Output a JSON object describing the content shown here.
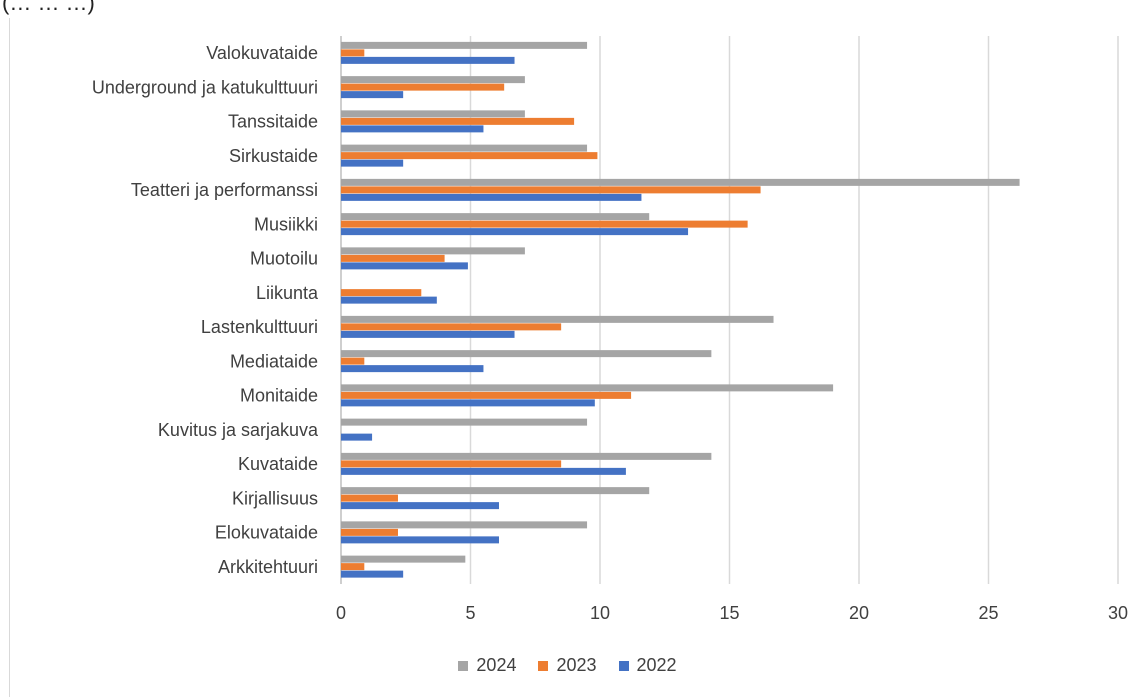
{
  "header_fragment": "(…                     …     …)",
  "chart_data": {
    "type": "bar",
    "orientation": "horizontal",
    "categories": [
      "Valokuvataide",
      "Underground ja katukulttuuri",
      "Tanssitaide",
      "Sirkustaide",
      "Teatteri ja performanssi",
      "Musiikki",
      "Muotoilu",
      "Liikunta",
      "Lastenkulttuuri",
      "Mediataide",
      "Monitaide",
      "Kuvitus ja sarjakuva",
      "Kuvataide",
      "Kirjallisuus",
      "Elokuvataide",
      "Arkkitehtuuri"
    ],
    "series": [
      {
        "name": "2024",
        "color": "#a5a5a5",
        "values": [
          9.5,
          7.1,
          7.1,
          9.5,
          26.2,
          11.9,
          7.1,
          0,
          16.7,
          14.3,
          19.0,
          9.5,
          14.3,
          11.9,
          9.5,
          4.8
        ]
      },
      {
        "name": "2023",
        "color": "#ed7d31",
        "values": [
          0.9,
          6.3,
          9.0,
          9.9,
          16.2,
          15.7,
          4.0,
          3.1,
          8.5,
          0.9,
          11.2,
          0,
          8.5,
          2.2,
          2.2,
          0.9
        ]
      },
      {
        "name": "2022",
        "color": "#4472c4",
        "values": [
          6.7,
          2.4,
          5.5,
          2.4,
          11.6,
          13.4,
          4.9,
          3.7,
          6.7,
          5.5,
          9.8,
          1.2,
          11.0,
          6.1,
          6.1,
          2.4
        ]
      }
    ],
    "xlim": [
      0,
      30
    ],
    "xticks": [
      "0",
      "5",
      "10",
      "15",
      "20",
      "25",
      "30"
    ],
    "grid": true,
    "legend_position": "bottom",
    "legend_order": [
      "2024",
      "2023",
      "2022"
    ]
  }
}
